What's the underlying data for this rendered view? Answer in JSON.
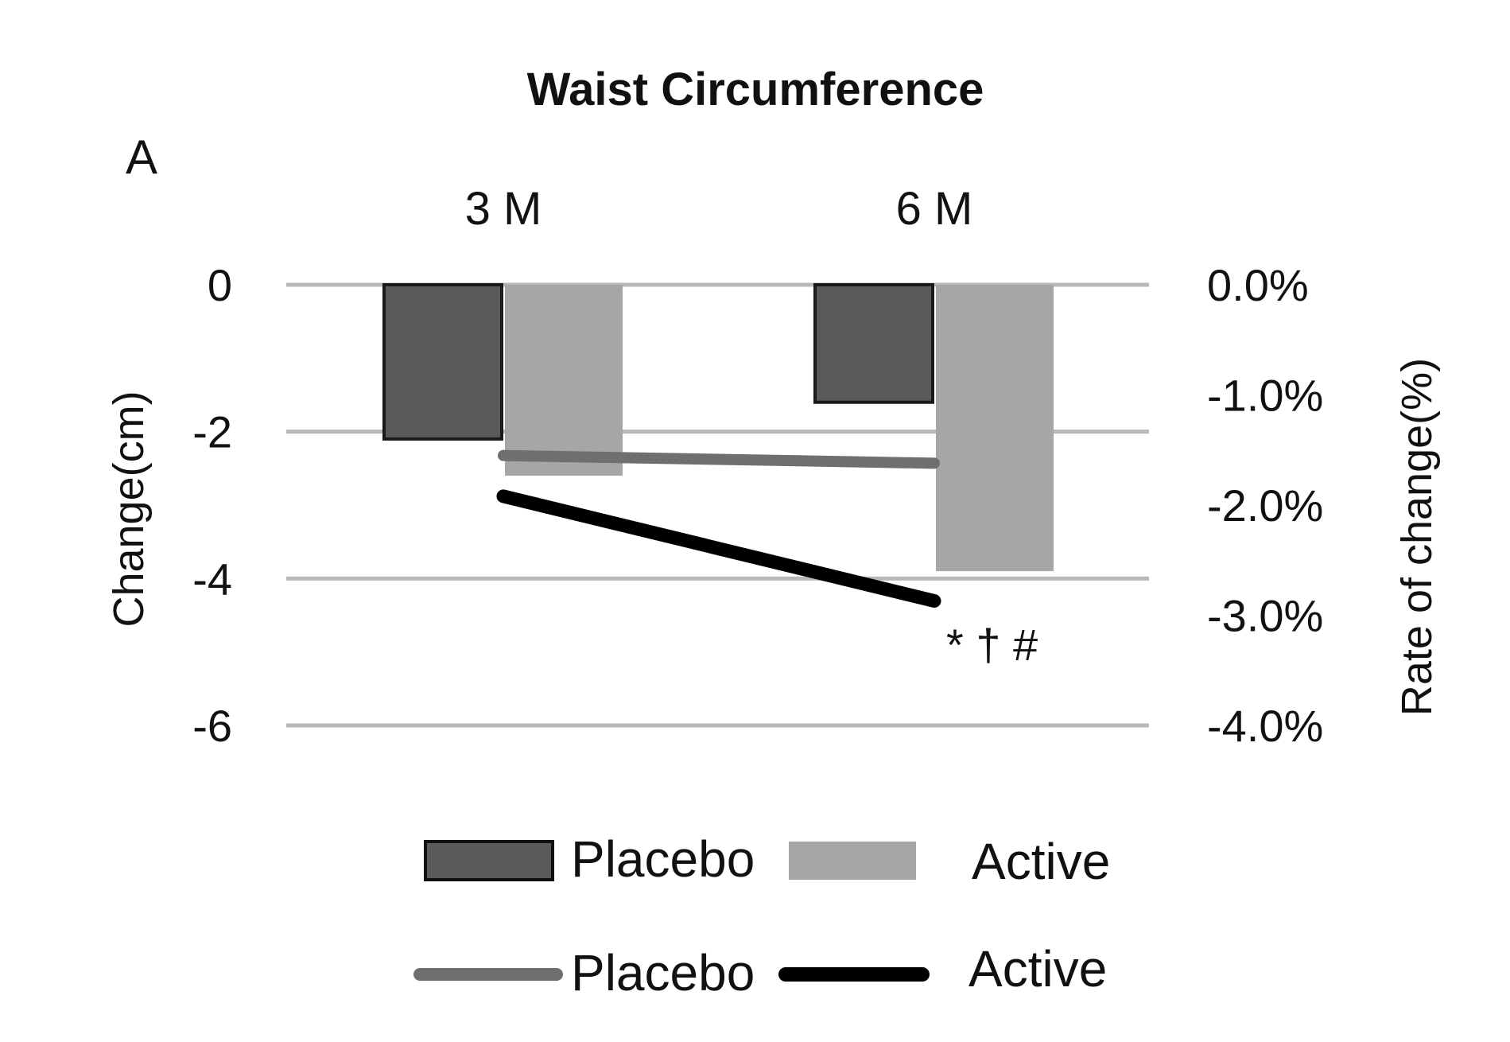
{
  "chart_data": {
    "type": "bar",
    "title": "Waist Circumference",
    "panel_label": "A",
    "categories": [
      "3 M",
      "6 M"
    ],
    "series": [
      {
        "name": "Placebo",
        "kind": "bar",
        "axis": "left",
        "color": "#5a5a5a",
        "values": [
          -2.1,
          -1.6
        ]
      },
      {
        "name": "Active",
        "kind": "bar",
        "axis": "left",
        "color": "#a6a6a6",
        "values": [
          -2.6,
          -3.9
        ]
      },
      {
        "name": "Placebo",
        "kind": "line",
        "axis": "right",
        "color": "#6f6f6f",
        "values": [
          -1.55,
          -1.62
        ]
      },
      {
        "name": "Active",
        "kind": "line",
        "axis": "right",
        "color": "#000000",
        "values": [
          -1.92,
          -2.87
        ]
      }
    ],
    "ylabel": "Change(cm)",
    "y2label": "Rate of change(%)",
    "ylim": [
      -6,
      0
    ],
    "y2lim": [
      -4.0,
      0.0
    ],
    "yticks": [
      "0",
      "-2",
      "-4",
      "-6"
    ],
    "y2ticks": [
      "0.0%",
      "-1.0%",
      "-2.0%",
      "-3.0%",
      "-4.0%"
    ],
    "annotation": "* † #",
    "legend_position": "bottom",
    "grid": true
  }
}
